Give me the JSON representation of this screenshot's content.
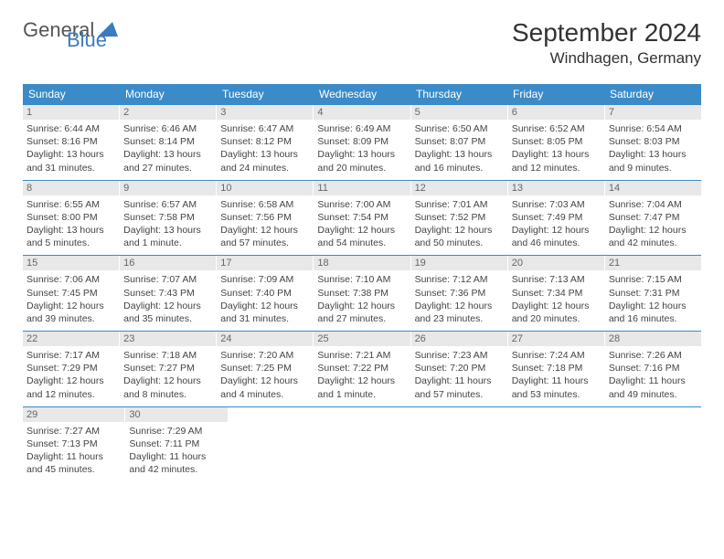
{
  "logo": {
    "text1": "General",
    "text2": "Blue"
  },
  "title": "September 2024",
  "location": "Windhagen, Germany",
  "header_color": "#3b8bc9",
  "accent_color": "#3b7bbf",
  "day_num_bg": "#e8e8e8",
  "weekdays": [
    "Sunday",
    "Monday",
    "Tuesday",
    "Wednesday",
    "Thursday",
    "Friday",
    "Saturday"
  ],
  "weeks": [
    [
      {
        "n": "1",
        "sr": "6:44 AM",
        "ss": "8:16 PM",
        "dl": "13 hours and 31 minutes."
      },
      {
        "n": "2",
        "sr": "6:46 AM",
        "ss": "8:14 PM",
        "dl": "13 hours and 27 minutes."
      },
      {
        "n": "3",
        "sr": "6:47 AM",
        "ss": "8:12 PM",
        "dl": "13 hours and 24 minutes."
      },
      {
        "n": "4",
        "sr": "6:49 AM",
        "ss": "8:09 PM",
        "dl": "13 hours and 20 minutes."
      },
      {
        "n": "5",
        "sr": "6:50 AM",
        "ss": "8:07 PM",
        "dl": "13 hours and 16 minutes."
      },
      {
        "n": "6",
        "sr": "6:52 AM",
        "ss": "8:05 PM",
        "dl": "13 hours and 12 minutes."
      },
      {
        "n": "7",
        "sr": "6:54 AM",
        "ss": "8:03 PM",
        "dl": "13 hours and 9 minutes."
      }
    ],
    [
      {
        "n": "8",
        "sr": "6:55 AM",
        "ss": "8:00 PM",
        "dl": "13 hours and 5 minutes."
      },
      {
        "n": "9",
        "sr": "6:57 AM",
        "ss": "7:58 PM",
        "dl": "13 hours and 1 minute."
      },
      {
        "n": "10",
        "sr": "6:58 AM",
        "ss": "7:56 PM",
        "dl": "12 hours and 57 minutes."
      },
      {
        "n": "11",
        "sr": "7:00 AM",
        "ss": "7:54 PM",
        "dl": "12 hours and 54 minutes."
      },
      {
        "n": "12",
        "sr": "7:01 AM",
        "ss": "7:52 PM",
        "dl": "12 hours and 50 minutes."
      },
      {
        "n": "13",
        "sr": "7:03 AM",
        "ss": "7:49 PM",
        "dl": "12 hours and 46 minutes."
      },
      {
        "n": "14",
        "sr": "7:04 AM",
        "ss": "7:47 PM",
        "dl": "12 hours and 42 minutes."
      }
    ],
    [
      {
        "n": "15",
        "sr": "7:06 AM",
        "ss": "7:45 PM",
        "dl": "12 hours and 39 minutes."
      },
      {
        "n": "16",
        "sr": "7:07 AM",
        "ss": "7:43 PM",
        "dl": "12 hours and 35 minutes."
      },
      {
        "n": "17",
        "sr": "7:09 AM",
        "ss": "7:40 PM",
        "dl": "12 hours and 31 minutes."
      },
      {
        "n": "18",
        "sr": "7:10 AM",
        "ss": "7:38 PM",
        "dl": "12 hours and 27 minutes."
      },
      {
        "n": "19",
        "sr": "7:12 AM",
        "ss": "7:36 PM",
        "dl": "12 hours and 23 minutes."
      },
      {
        "n": "20",
        "sr": "7:13 AM",
        "ss": "7:34 PM",
        "dl": "12 hours and 20 minutes."
      },
      {
        "n": "21",
        "sr": "7:15 AM",
        "ss": "7:31 PM",
        "dl": "12 hours and 16 minutes."
      }
    ],
    [
      {
        "n": "22",
        "sr": "7:17 AM",
        "ss": "7:29 PM",
        "dl": "12 hours and 12 minutes."
      },
      {
        "n": "23",
        "sr": "7:18 AM",
        "ss": "7:27 PM",
        "dl": "12 hours and 8 minutes."
      },
      {
        "n": "24",
        "sr": "7:20 AM",
        "ss": "7:25 PM",
        "dl": "12 hours and 4 minutes."
      },
      {
        "n": "25",
        "sr": "7:21 AM",
        "ss": "7:22 PM",
        "dl": "12 hours and 1 minute."
      },
      {
        "n": "26",
        "sr": "7:23 AM",
        "ss": "7:20 PM",
        "dl": "11 hours and 57 minutes."
      },
      {
        "n": "27",
        "sr": "7:24 AM",
        "ss": "7:18 PM",
        "dl": "11 hours and 53 minutes."
      },
      {
        "n": "28",
        "sr": "7:26 AM",
        "ss": "7:16 PM",
        "dl": "11 hours and 49 minutes."
      }
    ],
    [
      {
        "n": "29",
        "sr": "7:27 AM",
        "ss": "7:13 PM",
        "dl": "11 hours and 45 minutes."
      },
      {
        "n": "30",
        "sr": "7:29 AM",
        "ss": "7:11 PM",
        "dl": "11 hours and 42 minutes."
      },
      null,
      null,
      null,
      null,
      null
    ]
  ],
  "labels": {
    "sunrise": "Sunrise: ",
    "sunset": "Sunset: ",
    "daylight": "Daylight: "
  }
}
